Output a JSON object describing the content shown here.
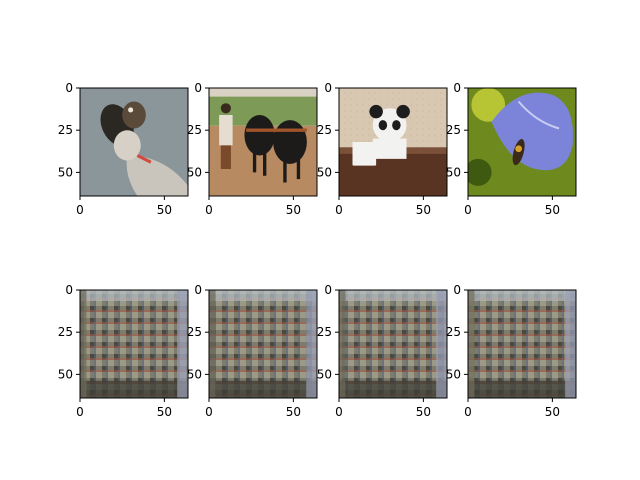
{
  "chart_data": {
    "type": "image-grid",
    "title": "",
    "rows": 2,
    "cols": 4,
    "xlim": [
      0,
      64
    ],
    "ylim": [
      64,
      0
    ],
    "xticks": [
      0,
      50
    ],
    "yticks": [
      0,
      25,
      50
    ],
    "panels": [
      {
        "row": 0,
        "col": 0,
        "content": "dog",
        "palette": [
          "#8a969a",
          "#2b2722",
          "#c9c4bc",
          "#d24a3e"
        ]
      },
      {
        "row": 0,
        "col": 1,
        "content": "oxen",
        "palette": [
          "#b88a62",
          "#1d1b1a",
          "#7d9a56",
          "#d9d2c4"
        ]
      },
      {
        "row": 0,
        "col": 2,
        "content": "teddy-bear-and-mug",
        "palette": [
          "#d8c8b2",
          "#5a3422",
          "#f2f2f0",
          "#1d1d1d"
        ]
      },
      {
        "row": 0,
        "col": 3,
        "content": "flower-with-bee",
        "palette": [
          "#7b84d8",
          "#6e8a1e",
          "#c9d23a",
          "#3b2a1a"
        ]
      },
      {
        "row": 1,
        "col": 0,
        "content": "reconstruction",
        "palette": [
          "#8a8a78",
          "#4b4a40",
          "#b8c2c8",
          "#c06048"
        ]
      },
      {
        "row": 1,
        "col": 1,
        "content": "reconstruction",
        "palette": [
          "#8a8a78",
          "#4b4a40",
          "#b8c2c8",
          "#c06048"
        ]
      },
      {
        "row": 1,
        "col": 2,
        "content": "reconstruction",
        "palette": [
          "#8a8a78",
          "#4b4a40",
          "#b8c2c8",
          "#c06048"
        ]
      },
      {
        "row": 1,
        "col": 3,
        "content": "reconstruction",
        "palette": [
          "#8a8a78",
          "#4b4a40",
          "#b8c2c8",
          "#c06048"
        ]
      }
    ]
  }
}
